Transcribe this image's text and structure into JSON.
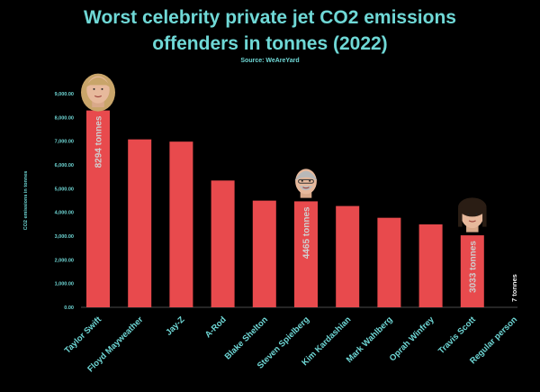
{
  "chart_data": {
    "type": "bar",
    "title": "Worst celebrity private jet CO2 emissions offenders in tonnes (2022)",
    "title_lines": [
      "Worst celebrity private jet CO2 emissions",
      "offenders in tonnes (2022)"
    ],
    "subtitle": "Source: WeAreYard",
    "ylabel": "CO2 emissions in tonnes",
    "xlabel": "",
    "ylim": [
      0,
      9000
    ],
    "yticks": [
      0,
      1000,
      2000,
      3000,
      4000,
      5000,
      6000,
      7000,
      8000,
      9000
    ],
    "ytick_labels": [
      "0.00",
      "1,000.00",
      "2,000.00",
      "3,000.00",
      "4,000.00",
      "5,000.00",
      "6,000.00",
      "7,000.00",
      "8,000.00",
      "9,000.00"
    ],
    "grid": false,
    "categories": [
      "Taylor Swift",
      "Floyd Mayweather",
      "Jay-Z",
      "A-Rod",
      "Blake Shelton",
      "Steven Spielberg",
      "Kim Kardashian",
      "Mark Wahlberg",
      "Oprah Winfrey",
      "Travis Scott",
      "Regular person"
    ],
    "values": [
      8294,
      7076,
      6981,
      5342,
      4495,
      4465,
      4268,
      3772,
      3493,
      3033,
      7
    ],
    "data_labels": [
      {
        "index": 0,
        "text": "8294 tonnes",
        "placement": "inside"
      },
      {
        "index": 5,
        "text": "4465 tonnes",
        "placement": "inside"
      },
      {
        "index": 9,
        "text": "3033 tonnes",
        "placement": "inside"
      },
      {
        "index": 10,
        "text": "7 tonnes",
        "placement": "above"
      }
    ],
    "portraits": [
      0,
      5,
      9
    ],
    "colors": {
      "background": "#000000",
      "bar": "#e84a4d",
      "title": "#6fd8d6",
      "axis_text": "#6fd8d6",
      "data_label": "#cfcfcf",
      "data_label_outside": "#f0f0f0",
      "axis_line": "#4a4a4a"
    }
  }
}
